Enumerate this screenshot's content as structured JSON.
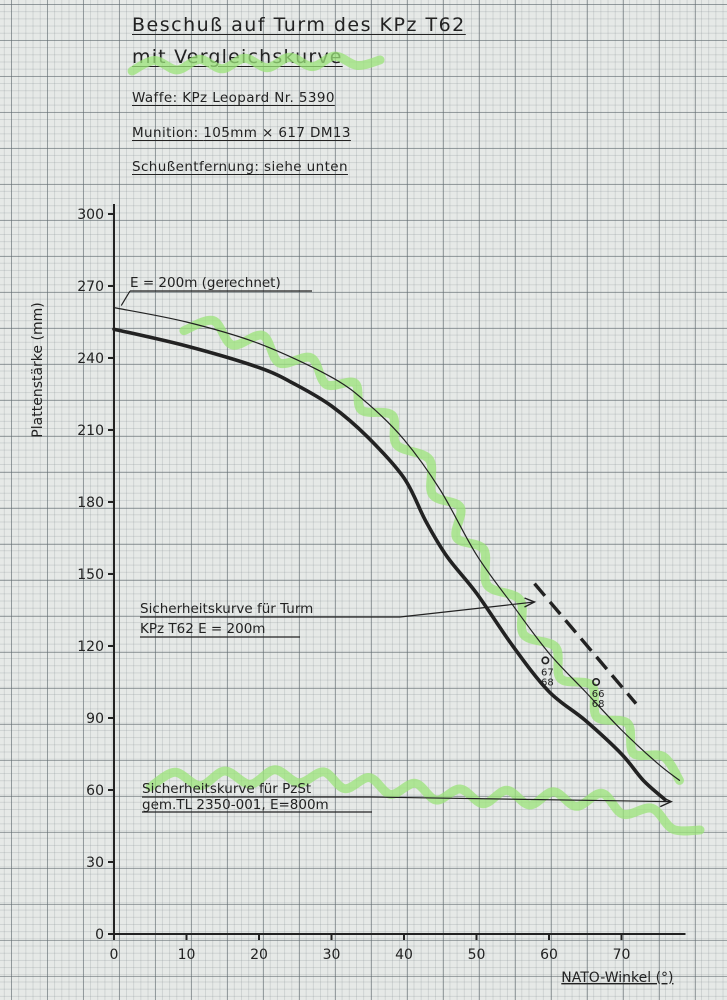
{
  "header": {
    "title": "Beschuß auf Turm des KPz T62",
    "subtitle": "mit Vergleichskurve",
    "weapon_label": "Waffe:",
    "weapon_value": "KPz Leopard Nr. 5390",
    "ammo_label": "Munition:",
    "ammo_value": "105mm × 617 DM13",
    "range_label": "Schußentfernung:",
    "range_value": "siehe unten"
  },
  "colors": {
    "ink": "#222222",
    "highlighter": "#9be37a"
  },
  "chart_data": {
    "type": "line",
    "title": "Beschuß auf Turm des KPz T62",
    "xlabel": "NATO-Winkel (°)",
    "ylabel": "Plattenstärke (mm)",
    "xlim": [
      0,
      78
    ],
    "ylim": [
      0,
      300
    ],
    "x_ticks": [
      0,
      10,
      20,
      30,
      40,
      50,
      60,
      70
    ],
    "y_ticks": [
      0,
      30,
      60,
      90,
      120,
      150,
      180,
      210,
      240,
      270,
      300
    ],
    "grid": true,
    "series": [
      {
        "name": "E = 200m (gerechnet)",
        "style": "thin",
        "x": [
          0,
          10,
          20,
          30,
          35,
          40,
          45,
          50,
          55,
          60,
          65,
          70,
          75,
          78
        ],
        "y": [
          261,
          255,
          246,
          232,
          221,
          206,
          185,
          158,
          137,
          117,
          101,
          85,
          71,
          64
        ]
      },
      {
        "name": "Sicherheitskurve für Turm KPz T62 E = 200m",
        "style": "thick",
        "x": [
          0,
          10,
          20,
          25,
          30,
          35,
          40,
          43,
          46,
          50,
          55,
          60,
          65,
          70,
          73,
          76
        ],
        "y": [
          252,
          245,
          236,
          229,
          220,
          207,
          190,
          172,
          157,
          142,
          120,
          101,
          89,
          75,
          64,
          56
        ]
      },
      {
        "style": "dashed",
        "x": [
          58,
          72
        ],
        "y": [
          146,
          96
        ]
      }
    ],
    "points": [
      {
        "x": 59.5,
        "y": 114,
        "label": "67\n68"
      },
      {
        "x": 66.5,
        "y": 105,
        "label": "66\n68"
      }
    ],
    "annotations": [
      {
        "text": "E = 200m (gerechnet)",
        "points_to_series": 0,
        "target": {
          "x": 1,
          "y": 261
        }
      },
      {
        "text": "Sicherheitskurve für Turm",
        "text2": "KPz T62  E = 200m",
        "points_to_series": 1,
        "target": {
          "x": 58,
          "y": 140
        }
      },
      {
        "text": "Sicherheitskurve für PzSt",
        "text2": "gem.TL 2350-001, E=800m",
        "target": {
          "x": 77,
          "y": 56
        }
      }
    ]
  }
}
